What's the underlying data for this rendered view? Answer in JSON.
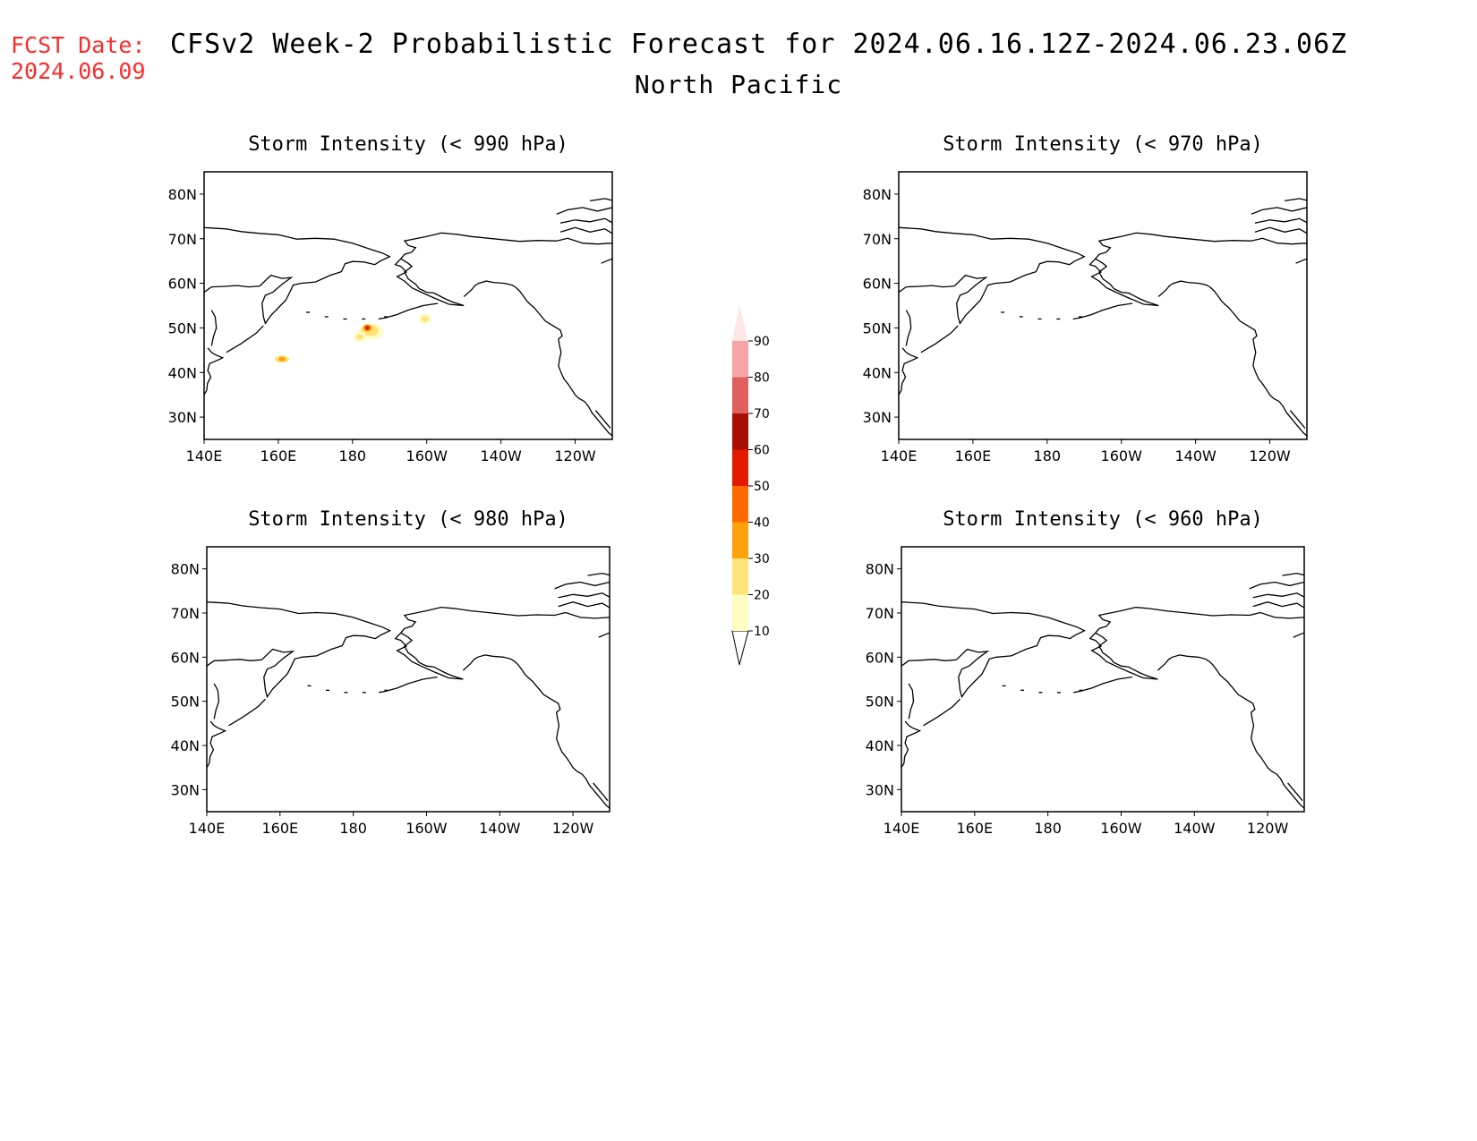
{
  "fcst_date": {
    "label": "FCST Date:",
    "value": "2024.06.09"
  },
  "title": "CFSv2 Week-2 Probabilistic Forecast for 2024.06.16.12Z-2024.06.23.06Z",
  "subtitle": "North Pacific",
  "lat_labels": [
    "80N",
    "70N",
    "60N",
    "50N",
    "40N",
    "30N"
  ],
  "lon_labels": [
    "140E",
    "160E",
    "180",
    "160W",
    "140W",
    "120W"
  ],
  "panels": [
    {
      "id": "p990",
      "title": "Storm Intensity (< 990 hPa)",
      "blobs": [
        {
          "lon": -176,
          "lat": 50,
          "level": "high"
        },
        {
          "lon": -160.5,
          "lat": 52,
          "level": "low"
        },
        {
          "lon": -178,
          "lat": 48,
          "level": "low"
        },
        {
          "lon": 161,
          "lat": 43,
          "level": "mid"
        }
      ]
    },
    {
      "id": "p970",
      "title": "Storm Intensity (< 970 hPa)",
      "blobs": []
    },
    {
      "id": "p980",
      "title": "Storm Intensity (< 980 hPa)",
      "blobs": []
    },
    {
      "id": "p960",
      "title": "Storm Intensity (< 960 hPa)",
      "blobs": []
    }
  ],
  "colorbar": {
    "levels": [
      "10",
      "20",
      "30",
      "40",
      "50",
      "60",
      "70",
      "80",
      "90"
    ],
    "colors": [
      "#fffcc4",
      "#ffe37a",
      "#ffa10a",
      "#ff6a00",
      "#e11a00",
      "#a70f00",
      "#e06060",
      "#f4a5a5",
      "#ffe6e6"
    ]
  }
}
